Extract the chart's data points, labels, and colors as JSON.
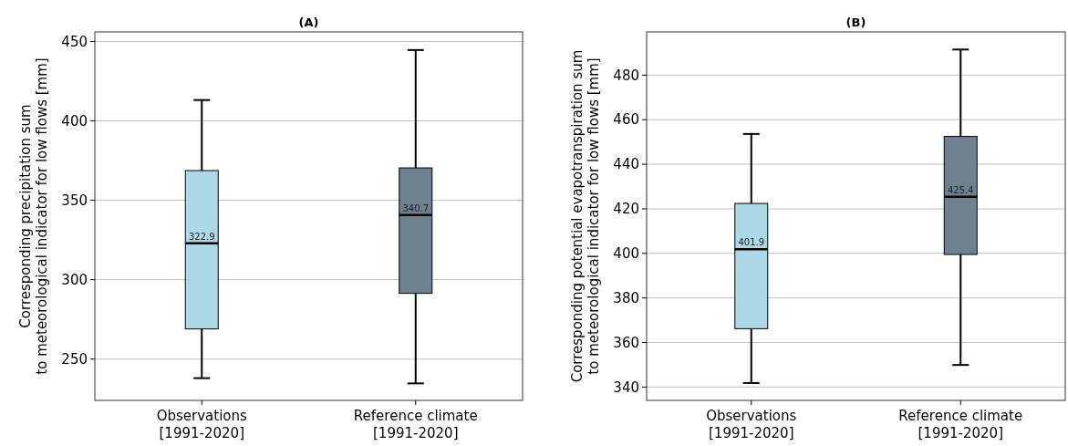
{
  "chart_data": [
    {
      "type": "box",
      "title": "(A)",
      "ylabel": "Corresponding precipitation sum\nto meteorological indicator for low flows [mm]",
      "categories": [
        "Observations\n[1991-2020]",
        "Reference climate\n[1991-2020]"
      ],
      "colors": [
        "#add8e6",
        "#708090"
      ],
      "boxes": [
        {
          "low": 238,
          "q1": 269,
          "median": 322.9,
          "q3": 368.7,
          "high": 413.1
        },
        {
          "low": 234.7,
          "q1": 291.4,
          "median": 340.7,
          "q3": 370.4,
          "high": 444.6
        }
      ],
      "ylim": [
        224,
        456
      ],
      "yticks": [
        250,
        300,
        350,
        400,
        450
      ],
      "grid": "y",
      "annotations": [
        {
          "text": "322.9",
          "x": "Observations\n[1991-2020]",
          "y": 322.9
        },
        {
          "text": "340.7",
          "x": "Reference climate\n[1991-2020]",
          "y": 340.7
        }
      ]
    },
    {
      "type": "box",
      "title": "(B)",
      "ylabel": "Corresponding potential evapotranspiration sum\nto meteorological indicator for low flows [mm]",
      "categories": [
        "Observations\n[1991-2020]",
        "Reference climate\n[1991-2020]"
      ],
      "colors": [
        "#add8e6",
        "#708090"
      ],
      "boxes": [
        {
          "low": 341.8,
          "q1": 366.2,
          "median": 401.9,
          "q3": 422.4,
          "high": 453.6
        },
        {
          "low": 349.9,
          "q1": 399.5,
          "median": 425.4,
          "q3": 452.5,
          "high": 491.5
        }
      ],
      "ylim": [
        334,
        499.4
      ],
      "yticks": [
        340,
        360,
        380,
        400,
        420,
        440,
        460,
        480
      ],
      "grid": "y",
      "annotations": [
        {
          "text": "401.9",
          "x": "Observations\n[1991-2020]",
          "y": 401.9
        },
        {
          "text": "425.4",
          "x": "Reference climate\n[1991-2020]",
          "y": 425.4
        }
      ]
    }
  ]
}
